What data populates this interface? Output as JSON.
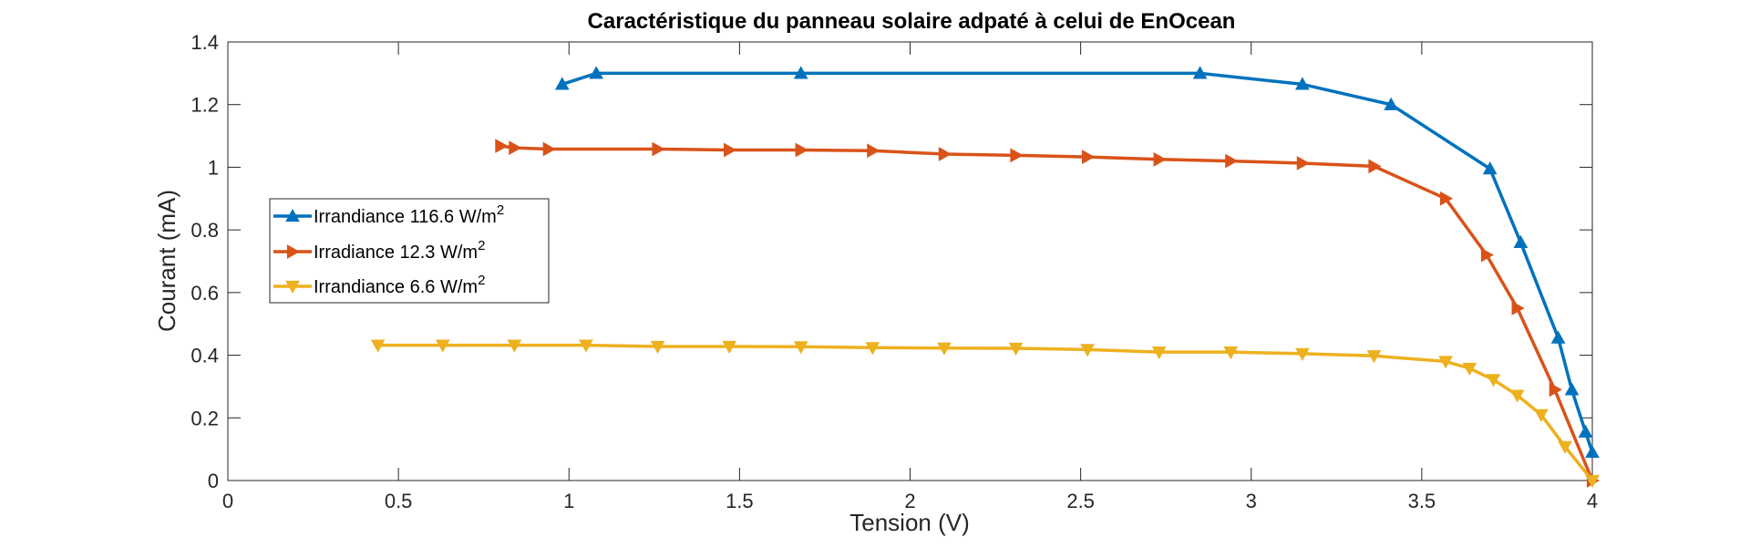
{
  "chart_data": {
    "type": "line",
    "title": "Caractéristique du panneau solaire adpaté à celui de EnOcean",
    "xlabel": "Tension (V)",
    "ylabel": "Courant (mA)",
    "xlim": [
      0,
      4
    ],
    "ylim": [
      0,
      1.4
    ],
    "xticks": [
      "0",
      "0.5",
      "1",
      "1.5",
      "2",
      "2.5",
      "3",
      "3.5",
      "4"
    ],
    "yticks": [
      "0",
      "0.2",
      "0.4",
      "0.6",
      "0.8",
      "1",
      "1.2",
      "1.4"
    ],
    "grid": false,
    "legend_position": "left",
    "series": [
      {
        "name": "Irrandiance 116.6 W/m",
        "name_superscript": "2",
        "color": "#0072BD",
        "marker": "triangle-up",
        "x": [
          0.98,
          1.08,
          1.68,
          2.85,
          3.15,
          3.41,
          3.7,
          3.79,
          3.9,
          3.94,
          3.98,
          4.0
        ],
        "y": [
          1.265,
          1.3,
          1.3,
          1.3,
          1.265,
          1.2,
          0.995,
          0.76,
          0.455,
          0.29,
          0.155,
          0.09
        ]
      },
      {
        "name": "Irradiance 12.3 W/m",
        "name_superscript": "2",
        "color": "#D95319",
        "marker": "triangle-right",
        "x": [
          0.8,
          0.84,
          0.94,
          1.26,
          1.47,
          1.68,
          1.89,
          2.1,
          2.31,
          2.52,
          2.73,
          2.94,
          3.15,
          3.36,
          3.57,
          3.69,
          3.78,
          3.89,
          4.0
        ],
        "y": [
          1.068,
          1.062,
          1.058,
          1.058,
          1.055,
          1.055,
          1.053,
          1.042,
          1.038,
          1.033,
          1.025,
          1.02,
          1.013,
          1.003,
          0.9,
          0.72,
          0.55,
          0.29,
          0.0
        ]
      },
      {
        "name": "Irrandiance 6.6 W/m",
        "name_superscript": "2",
        "color": "#EDB120",
        "marker": "triangle-down",
        "x": [
          0.44,
          0.63,
          0.84,
          1.05,
          1.26,
          1.47,
          1.68,
          1.89,
          2.1,
          2.31,
          2.52,
          2.73,
          2.94,
          3.15,
          3.36,
          3.57,
          3.64,
          3.71,
          3.78,
          3.85,
          3.92,
          4.0
        ],
        "y": [
          0.432,
          0.432,
          0.432,
          0.432,
          0.428,
          0.428,
          0.427,
          0.424,
          0.423,
          0.422,
          0.418,
          0.41,
          0.41,
          0.405,
          0.398,
          0.38,
          0.358,
          0.322,
          0.272,
          0.21,
          0.108,
          0.0
        ]
      }
    ]
  }
}
